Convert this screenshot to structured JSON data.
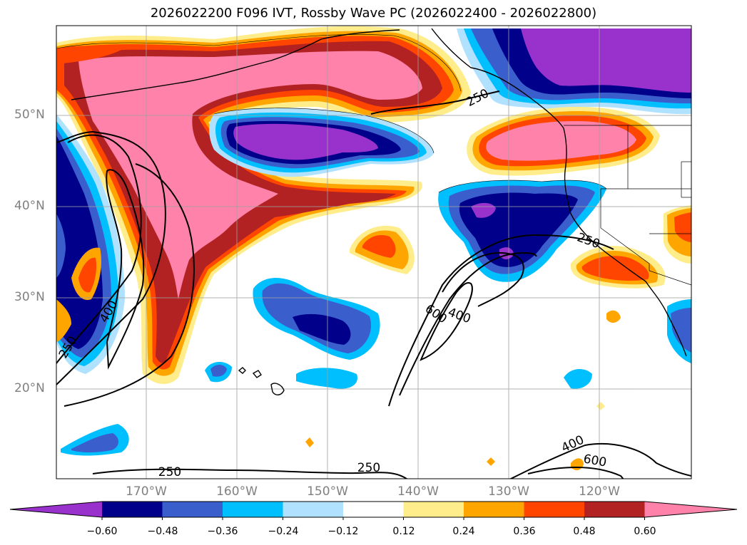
{
  "title": "2026022200 F096 IVT, Rossby Wave PC (2026022400 - 2026022800)",
  "map": {
    "lat_labels": [
      "50°N",
      "40°N",
      "30°N",
      "20°N"
    ],
    "lon_labels": [
      "170°W",
      "160°W",
      "150°W",
      "140°W",
      "130°W",
      "120°W"
    ],
    "contour_labels": [
      "250",
      "250",
      "250",
      "250",
      "250",
      "400",
      "400",
      "400",
      "600",
      "600"
    ]
  },
  "colorbar": {
    "ticks": [
      "−0.60",
      "−0.48",
      "−0.36",
      "−0.24",
      "−0.12",
      "0.12",
      "0.24",
      "0.36",
      "0.48",
      "0.60"
    ],
    "colors": [
      "#9932cc",
      "#00008b",
      "#3a5fcd",
      "#00bfff",
      "#b0e2ff",
      "#ffffff",
      "#ffec8b",
      "#ffa500",
      "#ff4500",
      "#b22222",
      "#ff82ab"
    ]
  }
}
